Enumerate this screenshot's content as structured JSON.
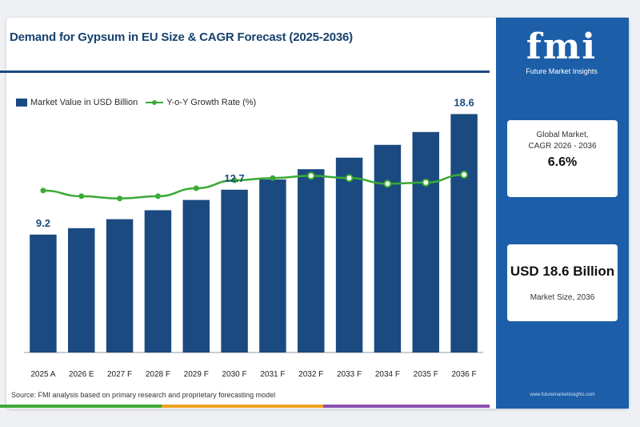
{
  "title": "Demand for Gypsum in EU Size & CAGR Forecast (2025-2036)",
  "legend": {
    "bar_label": "Market Value in USD Billion",
    "line_label": "Y-o-Y Growth Rate (%)"
  },
  "source": "Source: FMI analysis based on primary research and proprietary forecasting model",
  "side_panel": {
    "logo_text": "fmi",
    "logo_subtitle": "Future Market Insights",
    "cagr_label_1": "Global Market,",
    "cagr_label_2": "CAGR 2026 - 2036",
    "cagr_value": "6.6%",
    "size_value": "USD 18.6 Billion",
    "size_label": "Market Size, 2036",
    "site_url": "www.futuremarketinsights.com"
  },
  "colors": {
    "bar": "#1b4a80",
    "line": "#3aaa35",
    "panel": "#1d5ea8"
  },
  "chart_data": {
    "type": "bar",
    "categories": [
      "2025 A",
      "2026 E",
      "2027 F",
      "2028 F",
      "2029 F",
      "2030 F",
      "2031 F",
      "2032 F",
      "2033 F",
      "2034 F",
      "2035 F",
      "2036 F"
    ],
    "series": [
      {
        "name": "Market Value in USD Billion",
        "type": "bar",
        "values": [
          9.2,
          9.7,
          10.4,
          11.1,
          11.9,
          12.7,
          13.5,
          14.3,
          15.2,
          16.2,
          17.2,
          18.6
        ]
      },
      {
        "name": "Y-o-Y Growth Rate (%)",
        "type": "line",
        "values": [
          5.8,
          5.3,
          5.1,
          5.3,
          6.0,
          6.7,
          6.9,
          7.1,
          6.9,
          6.4,
          6.5,
          7.2
        ]
      }
    ],
    "data_labels": [
      {
        "category": "2025 A",
        "text": "9.2"
      },
      {
        "category": "2030 F",
        "text": "12.7"
      },
      {
        "category": "2036 F",
        "text": "18.6"
      }
    ],
    "ylim": [
      0,
      20
    ],
    "growth_ylim": [
      0,
      12
    ],
    "grid": false,
    "legend_position": "top-left"
  }
}
